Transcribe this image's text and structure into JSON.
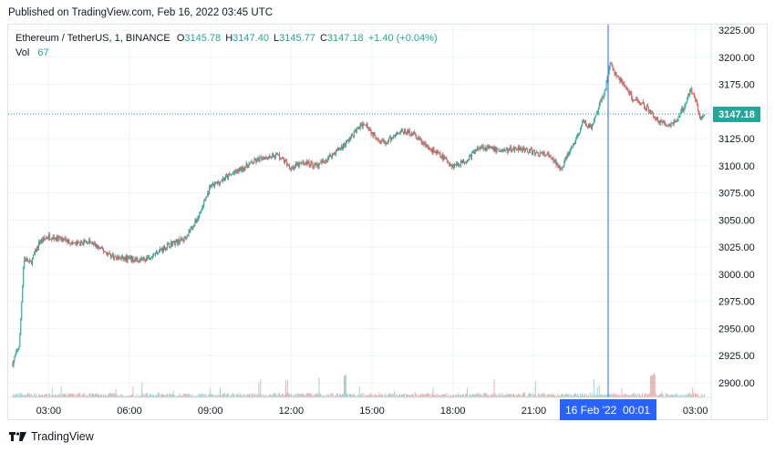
{
  "header": {
    "published": "Published on TradingView.com, Feb 16, 2022 03:45 UTC"
  },
  "legend": {
    "symbol": "Ethereum / TetherUS, 1, BINANCE",
    "o_label": "O",
    "o": "3145.78",
    "h_label": "H",
    "h": "3147.40",
    "l_label": "L",
    "l": "3145.77",
    "c_label": "C",
    "c": "3147.18",
    "change": "+1.40 (+0.04%)",
    "vol_label": "Vol",
    "vol": "67"
  },
  "colors": {
    "up": "#26a69a",
    "down": "#ef5350",
    "crosshair": "#2962ff",
    "price_badge": "#26a69a",
    "date_badge": "#2962ff"
  },
  "footer": {
    "brand": "TradingView",
    "logo_icon": "tradingview-logo-icon"
  },
  "chart_data": {
    "type": "candlestick",
    "title": "Ethereum / TetherUS, 1, BINANCE",
    "x_ticks": [
      "03:00",
      "06:00",
      "09:00",
      "12:00",
      "15:00",
      "18:00",
      "21:00",
      "16 Feb '22",
      "00:01",
      "03:00"
    ],
    "y_ticks": [
      "3225.00",
      "3200.00",
      "3175.00",
      "3150.00",
      "3125.00",
      "3100.00",
      "3075.00",
      "3050.00",
      "3025.00",
      "3000.00",
      "2975.00",
      "2950.00",
      "2925.00",
      "2900.00"
    ],
    "ylim": [
      2888,
      3232
    ],
    "last_price": "3147.18",
    "crosshair_label": "16 Feb '22   00:01",
    "close_path": [
      [
        "01:40",
        2918
      ],
      [
        "01:55",
        2935
      ],
      [
        "02:05",
        3015
      ],
      [
        "02:20",
        3010
      ],
      [
        "02:40",
        3030
      ],
      [
        "03:00",
        3035
      ],
      [
        "03:30",
        3032
      ],
      [
        "04:00",
        3028
      ],
      [
        "04:30",
        3030
      ],
      [
        "05:00",
        3022
      ],
      [
        "05:30",
        3015
      ],
      [
        "06:00",
        3014
      ],
      [
        "06:30",
        3013
      ],
      [
        "07:00",
        3020
      ],
      [
        "07:30",
        3028
      ],
      [
        "08:00",
        3032
      ],
      [
        "08:30",
        3050
      ],
      [
        "09:00",
        3080
      ],
      [
        "09:30",
        3088
      ],
      [
        "10:00",
        3095
      ],
      [
        "10:30",
        3102
      ],
      [
        "11:00",
        3108
      ],
      [
        "11:30",
        3110
      ],
      [
        "12:00",
        3098
      ],
      [
        "12:30",
        3103
      ],
      [
        "13:00",
        3100
      ],
      [
        "13:30",
        3110
      ],
      [
        "14:00",
        3120
      ],
      [
        "14:30",
        3135
      ],
      [
        "14:45",
        3140
      ],
      [
        "15:00",
        3130
      ],
      [
        "15:30",
        3120
      ],
      [
        "16:00",
        3132
      ],
      [
        "16:30",
        3130
      ],
      [
        "17:00",
        3118
      ],
      [
        "17:30",
        3110
      ],
      [
        "18:00",
        3100
      ],
      [
        "18:30",
        3105
      ],
      [
        "19:00",
        3118
      ],
      [
        "19:30",
        3115
      ],
      [
        "20:00",
        3114
      ],
      [
        "20:30",
        3117
      ],
      [
        "21:00",
        3112
      ],
      [
        "21:30",
        3110
      ],
      [
        "22:00",
        3098
      ],
      [
        "22:30",
        3120
      ],
      [
        "22:50",
        3140
      ],
      [
        "23:10",
        3135
      ],
      [
        "23:30",
        3160
      ],
      [
        "23:40",
        3172
      ],
      [
        "23:50",
        3195
      ],
      [
        "00:00",
        3185
      ],
      [
        "00:20",
        3175
      ],
      [
        "00:40",
        3162
      ],
      [
        "01:00",
        3158
      ],
      [
        "01:20",
        3150
      ],
      [
        "01:40",
        3140
      ],
      [
        "02:00",
        3138
      ],
      [
        "02:20",
        3142
      ],
      [
        "02:40",
        3160
      ],
      [
        "02:50",
        3172
      ],
      [
        "03:00",
        3160
      ],
      [
        "03:10",
        3145
      ],
      [
        "03:20",
        3147.18
      ]
    ]
  }
}
